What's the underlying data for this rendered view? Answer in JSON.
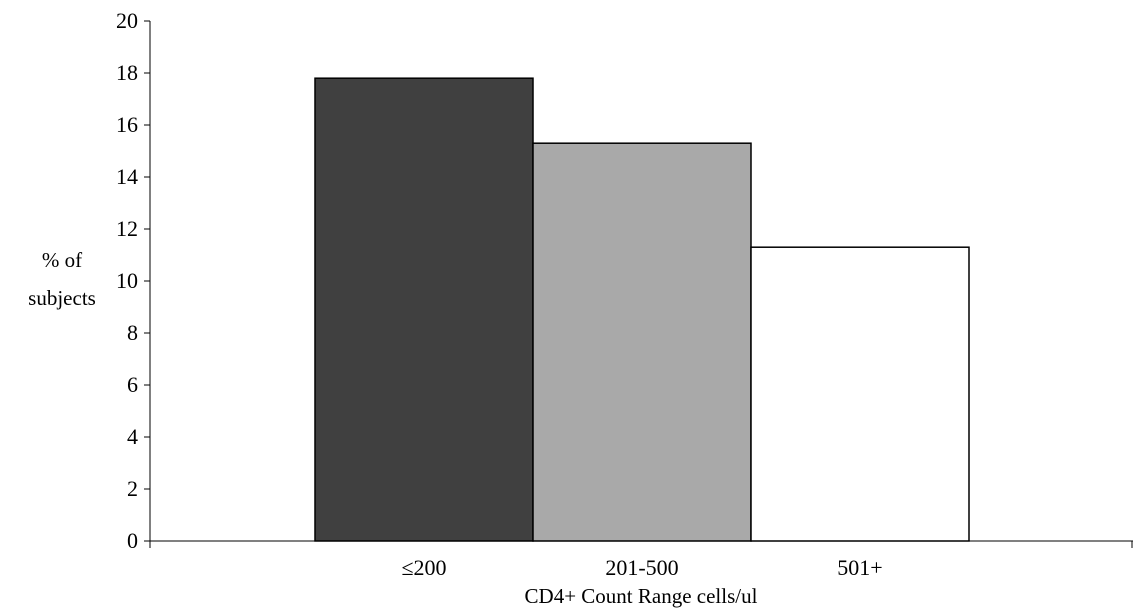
{
  "chart_data": {
    "type": "bar",
    "title": "",
    "xlabel": "CD4+ Count Range cells/ul",
    "ylabel_lines": [
      "% of",
      "subjects"
    ],
    "categories": [
      "≤200",
      "201-500",
      "501+"
    ],
    "values": [
      17.8,
      15.3,
      11.3
    ],
    "bar_colors": [
      "#404040",
      "#a9a9a9",
      "#ffffff"
    ],
    "ylim": [
      0,
      20
    ],
    "yticks": [
      "0",
      "2",
      "4",
      "6",
      "8",
      "10",
      "12",
      "14",
      "16",
      "18",
      "20"
    ],
    "grid": false,
    "legend": "none"
  }
}
